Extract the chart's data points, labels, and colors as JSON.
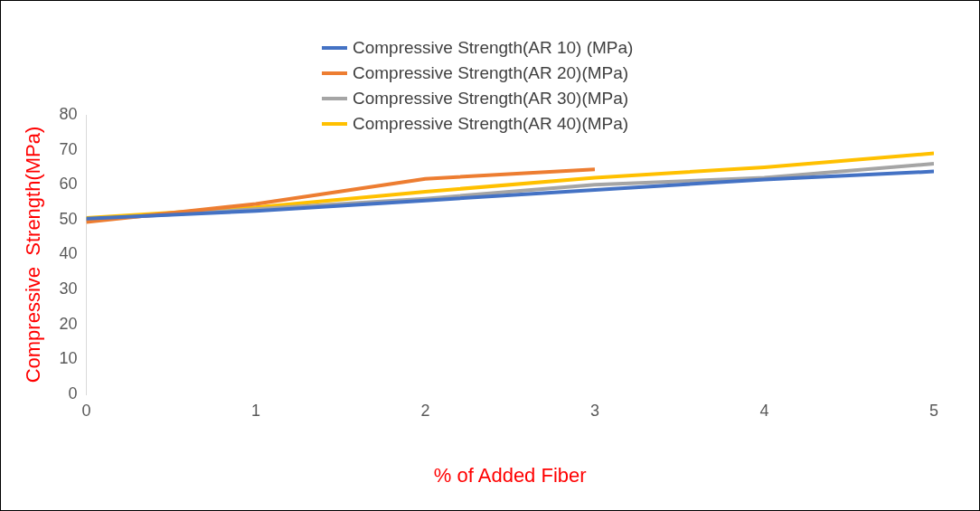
{
  "chart_data": {
    "type": "line",
    "xlabel": "% of Added Fiber",
    "ylabel": "Compressive  Strength(MPa)",
    "x": [
      0,
      1,
      2,
      3,
      4,
      5
    ],
    "xlim": [
      0,
      5
    ],
    "xticks": [
      0,
      1,
      2,
      3,
      4,
      5
    ],
    "ylim": [
      0,
      80
    ],
    "yticks": [
      0,
      10,
      20,
      30,
      40,
      50,
      60,
      70,
      80
    ],
    "grid": false,
    "legend": "top",
    "series": [
      {
        "name": "Compressive Strength(AR 10) (MPa)",
        "color": "#4472c4",
        "values": [
          50.3,
          52.5,
          55.5,
          58.5,
          61.5,
          63.8
        ]
      },
      {
        "name": "Compressive Strength(AR 20)(MPa)",
        "color": "#ed7d31",
        "values": [
          49.3,
          54.5,
          61.7,
          64.4,
          null,
          null
        ]
      },
      {
        "name": "Compressive Strength(AR 30)(MPa)",
        "color": "#a5a5a5",
        "values": [
          50,
          53,
          56,
          60,
          62,
          66
        ]
      },
      {
        "name": "Compressive Strength(AR 40)(MPa)",
        "color": "#ffc000",
        "values": [
          50.5,
          53.5,
          58,
          62,
          65,
          69
        ]
      }
    ]
  }
}
